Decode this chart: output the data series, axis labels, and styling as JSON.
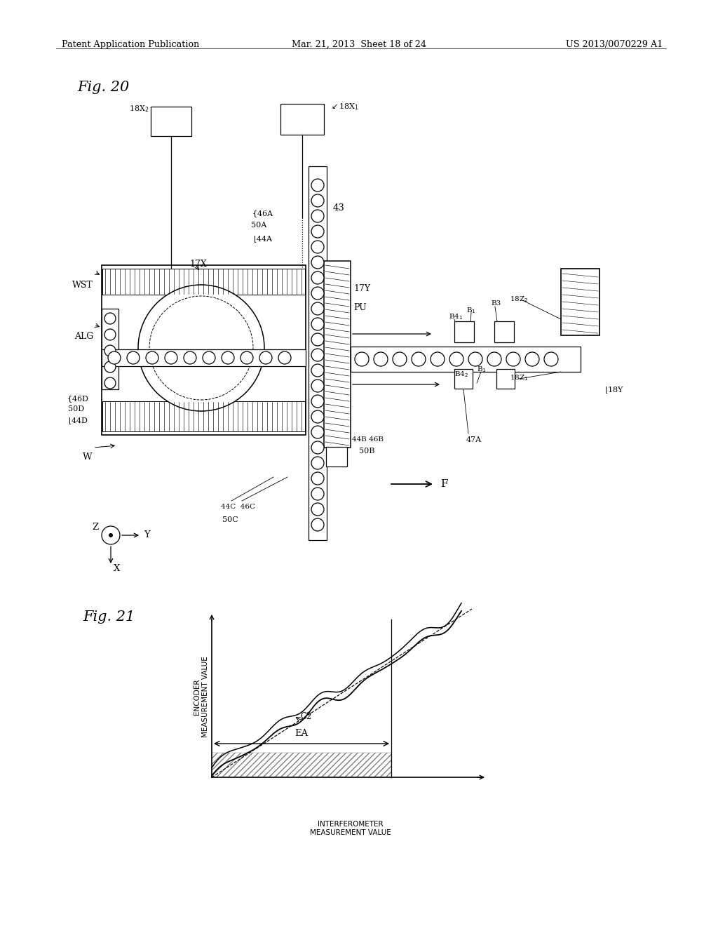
{
  "bg_color": "#ffffff",
  "header_left": "Patent Application Publication",
  "header_mid": "Mar. 21, 2013  Sheet 18 of 24",
  "header_right": "US 2013/0070229 A1",
  "fig20_label": "Fig. 20",
  "fig21_label": "Fig. 21",
  "lw": 0.9
}
